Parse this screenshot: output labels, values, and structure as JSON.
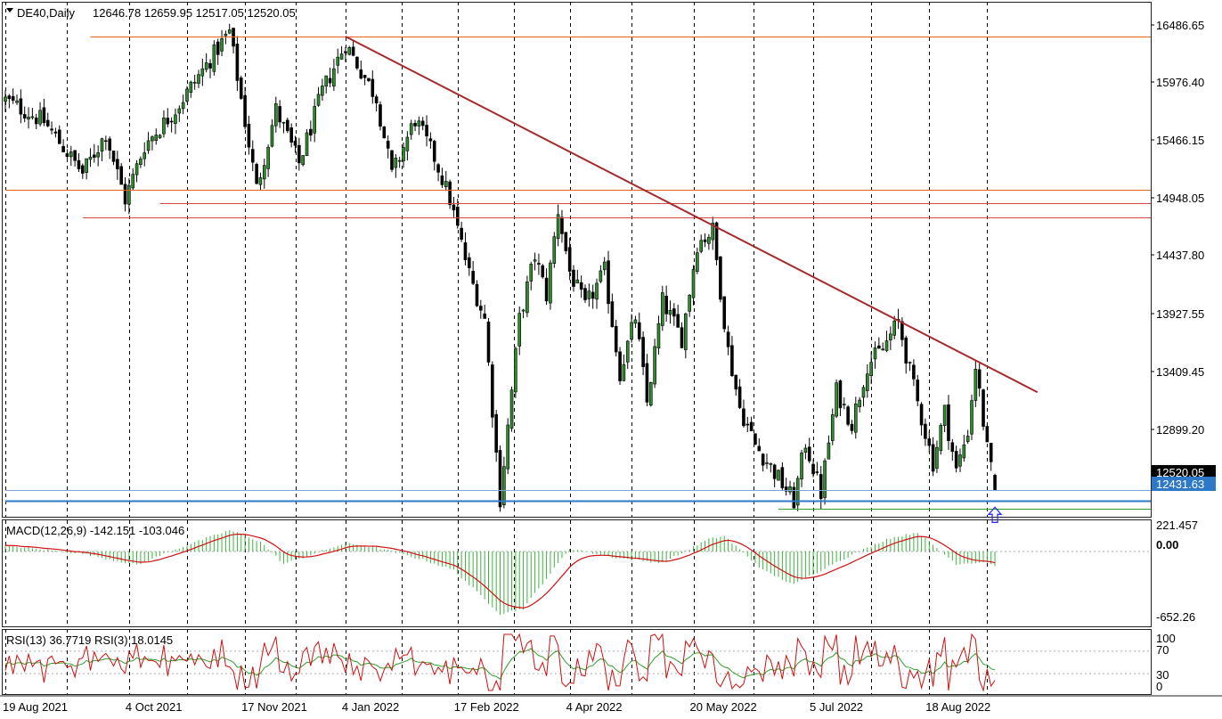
{
  "chart_data": [
    {
      "type": "candlestick",
      "symbol_timeframe": "DE40,Daily",
      "ohlc_label": "12646.78 12659.95 12517.05 12520.05",
      "price_axis_labels": [
        "16486.65",
        "15976.40",
        "15466.15",
        "14948.05",
        "14437.80",
        "13927.55",
        "13409.45",
        "12899.20",
        "12520.05",
        "12431.63"
      ],
      "price_range": [
        12300,
        16600
      ],
      "current_price": 12520.05,
      "marked_level": 12431.63,
      "date_labels": [
        "19 Aug 2021",
        "4 Oct 2021",
        "17 Nov 2021",
        "4 Jan 2022",
        "17 Feb 2022",
        "4 Apr 2022",
        "20 May 2022",
        "5 Jul 2022",
        "18 Aug 2022"
      ],
      "date_label_bars": [
        0,
        32,
        62,
        88,
        117,
        146,
        178,
        209,
        239
      ],
      "bar_count": 264,
      "horizontal_lines": [
        {
          "price": 16310,
          "color": "#e8621a",
          "from_bar": 22
        },
        {
          "price": 15030,
          "color": "#e8621a",
          "from_bar": 0
        },
        {
          "price": 14920,
          "color": "#d84a4a",
          "from_bar": 40
        },
        {
          "price": 14800,
          "color": "#d84a4a",
          "from_bar": 20
        },
        {
          "price": 12520,
          "color": "#7aa7d6",
          "from_bar": 0
        },
        {
          "price": 12431.63,
          "color": "#2d78c8",
          "from_bar": 0
        },
        {
          "price": 12370,
          "color": "#2ea02e",
          "from_bar": 200
        }
      ],
      "trendline": {
        "from": {
          "bar": 88,
          "price": 16310
        },
        "to": {
          "bar": 267,
          "price": 13340
        },
        "color": "#a52a2a"
      },
      "up_arrow": {
        "bar": 256,
        "price": 12320,
        "color": "#2d2dff"
      },
      "anchors": [
        [
          0,
          15780
        ],
        [
          10,
          15600
        ],
        [
          20,
          15170
        ],
        [
          26,
          15500
        ],
        [
          31,
          14950
        ],
        [
          36,
          15400
        ],
        [
          44,
          15700
        ],
        [
          50,
          15980
        ],
        [
          58,
          16350
        ],
        [
          65,
          15040
        ],
        [
          70,
          15700
        ],
        [
          76,
          15250
        ],
        [
          82,
          15850
        ],
        [
          88,
          16250
        ],
        [
          96,
          15800
        ],
        [
          100,
          15150
        ],
        [
          106,
          15620
        ],
        [
          111,
          15300
        ],
        [
          115,
          14950
        ],
        [
          120,
          14330
        ],
        [
          124,
          13950
        ],
        [
          128,
          12450
        ],
        [
          133,
          13950
        ],
        [
          137,
          14480
        ],
        [
          140,
          14150
        ],
        [
          143,
          14860
        ],
        [
          146,
          14350
        ],
        [
          150,
          14050
        ],
        [
          155,
          14350
        ],
        [
          159,
          13500
        ],
        [
          163,
          13970
        ],
        [
          166,
          13250
        ],
        [
          170,
          14100
        ],
        [
          175,
          13790
        ],
        [
          179,
          14580
        ],
        [
          183,
          14690
        ],
        [
          187,
          13690
        ],
        [
          190,
          13210
        ],
        [
          194,
          12900
        ],
        [
          199,
          12670
        ],
        [
          204,
          12430
        ],
        [
          207,
          12920
        ],
        [
          211,
          12500
        ],
        [
          215,
          13350
        ],
        [
          219,
          13080
        ],
        [
          223,
          13570
        ],
        [
          227,
          13700
        ],
        [
          231,
          13930
        ],
        [
          235,
          13380
        ],
        [
          240,
          12750
        ],
        [
          243,
          13180
        ],
        [
          246,
          12680
        ],
        [
          249,
          13020
        ],
        [
          251,
          13560
        ],
        [
          254,
          12860
        ],
        [
          256,
          12520
        ]
      ]
    },
    {
      "type": "line",
      "title": "MACD(12,26,9) -142.151 -103.046",
      "axis_labels": [
        "221.457",
        "0.00",
        "-652.26"
      ],
      "ylim": [
        -720,
        300
      ],
      "anchors": [
        [
          0,
          55
        ],
        [
          20,
          -20
        ],
        [
          34,
          -130
        ],
        [
          46,
          50
        ],
        [
          58,
          205
        ],
        [
          66,
          95
        ],
        [
          72,
          -120
        ],
        [
          88,
          80
        ],
        [
          96,
          40
        ],
        [
          108,
          -80
        ],
        [
          116,
          -180
        ],
        [
          128,
          -600
        ],
        [
          134,
          -550
        ],
        [
          146,
          30
        ],
        [
          158,
          -60
        ],
        [
          170,
          -110
        ],
        [
          182,
          120
        ],
        [
          186,
          150
        ],
        [
          196,
          -180
        ],
        [
          204,
          -320
        ],
        [
          214,
          -120
        ],
        [
          228,
          120
        ],
        [
          236,
          185
        ],
        [
          246,
          -120
        ],
        [
          254,
          -100
        ],
        [
          256,
          -142
        ]
      ]
    },
    {
      "type": "line",
      "title": "RSI(13) 36.7719 RSI(3) 18.0145",
      "axis_labels": [
        "100",
        "70",
        "30",
        "0"
      ],
      "ylim": [
        0,
        100
      ],
      "levels": [
        70,
        30
      ]
    }
  ]
}
